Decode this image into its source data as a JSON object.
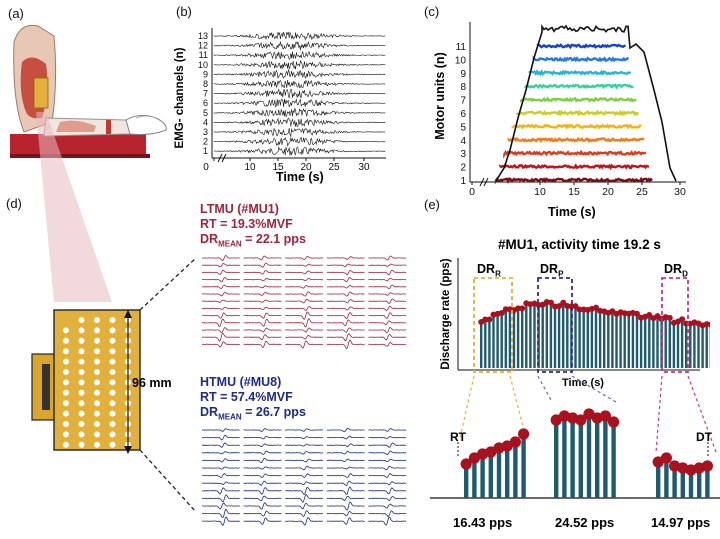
{
  "panels": {
    "a": {
      "label": "(a)"
    },
    "b": {
      "label": "(b)",
      "ylabel": "EMG- channels (n)",
      "xlabel": "Time (s)",
      "yticks": [
        "1",
        "2",
        "3",
        "4",
        "5",
        "6",
        "7",
        "8",
        "9",
        "10",
        "11",
        "12",
        "13"
      ],
      "xticks": [
        "0",
        "10",
        "15",
        "20",
        "25",
        "30"
      ]
    },
    "c": {
      "label": "(c)",
      "ylabel": "Motor units (n)",
      "xlabel": "Time (s)",
      "yticks": [
        "1",
        "2",
        "3",
        "4",
        "5",
        "6",
        "7",
        "8",
        "9",
        "10",
        "11"
      ],
      "xticks": [
        "0",
        "10",
        "15",
        "20",
        "25",
        "30"
      ],
      "unit_colors": [
        "#7a0d1a",
        "#c0141c",
        "#e03a1a",
        "#f07a14",
        "#f0b414",
        "#c8d020",
        "#7ad040",
        "#3ad0a0",
        "#20b8d8",
        "#2878e0",
        "#1a40d0"
      ]
    },
    "d": {
      "label": "(d)",
      "size_label": "96 mm",
      "ltmu": {
        "title": "LTMU (#MU1)",
        "rt": "RT = 19.3%MVF",
        "dr_prefix": "DR",
        "dr_sub": "MEAN",
        "dr_value": " = 22.1 pps",
        "color": "#a0243e"
      },
      "htmu": {
        "title": "HTMU (#MU8)",
        "rt": "RT = 57.4%MVF",
        "dr_prefix": "DR",
        "dr_sub": "MEAN",
        "dr_value": " = 26.7 pps",
        "color": "#1f2a8a"
      }
    },
    "e": {
      "label": "(e)",
      "title": "#MU1, activity time 19.2 s",
      "ylabel": "Discharge rate (pps)",
      "xlabel": "Time (s)",
      "dr_r": {
        "main": "DR",
        "sub": "R"
      },
      "dr_p": {
        "main": "DR",
        "sub": "P"
      },
      "dr_d": {
        "main": "DR",
        "sub": "D"
      },
      "rt_label": "RT",
      "dt_label": "DT",
      "values": [
        "16.43 pps",
        "24.52 pps",
        "14.97 pps"
      ]
    }
  }
}
